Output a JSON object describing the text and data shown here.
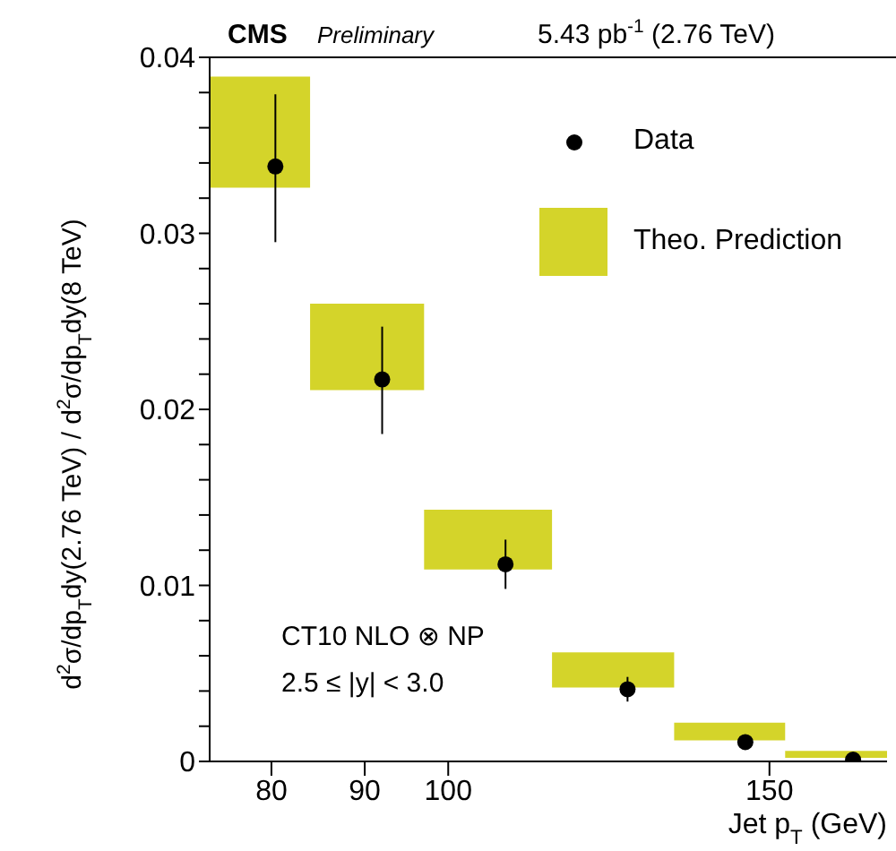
{
  "chart_data": {
    "type": "scatter",
    "xlabel": "Jet p$_{T}$ (GeV)",
    "ylabel": "d$^{2}$σ/dp$_{T}$dy(2.76 TeV) / d$^{2}$σ/dp$_{T}$dy(8 TeV)",
    "annotations": [
      "CMS",
      "Preliminary",
      "5.43 pb$^{-1}$ (2.76 TeV)",
      "CT10 NLO ⊗ NP",
      "2.5 ≤ |y| < 3.0"
    ],
    "log": "x",
    "xlim": [
      74,
      174
    ],
    "xticks": [
      80,
      90,
      100,
      150
    ],
    "ylim": [
      0,
      0.04
    ],
    "yticks": [
      0,
      {
        "value": 0.002,
        "label": null
      },
      {
        "value": 0.004,
        "label": null
      },
      {
        "value": 0.006,
        "label": null
      },
      {
        "value": 0.008,
        "label": null
      },
      0.01,
      {
        "value": 0.012,
        "label": null
      },
      {
        "value": 0.014,
        "label": null
      },
      {
        "value": 0.016,
        "label": null
      },
      {
        "value": 0.018,
        "label": null
      },
      0.02,
      {
        "value": 0.022,
        "label": null
      },
      {
        "value": 0.024,
        "label": null
      },
      {
        "value": 0.026,
        "label": null
      },
      {
        "value": 0.028,
        "label": null
      },
      0.03,
      {
        "value": 0.032,
        "label": null
      },
      {
        "value": 0.034,
        "label": null
      },
      {
        "value": 0.036,
        "label": null
      },
      {
        "value": 0.038,
        "label": null
      },
      0.04
    ],
    "grid": false,
    "legend": "top right",
    "series": [
      {
        "name": "Theo. Prediction",
        "type": "histogram",
        "color": "#d4d42a",
        "bins": [
          74,
          84,
          97,
          114,
          133,
          153,
          174
        ],
        "base": [
          0.0326,
          0.0211,
          0.0109,
          0.0042,
          0.0012,
          0.0002
        ],
        "values": [
          0.0063,
          0.0049,
          0.0034,
          0.002,
          0.001,
          0.0004
        ]
      },
      {
        "name": "Data",
        "color": "#000000",
        "marker": "circle",
        "x": [
          80.4,
          92,
          107.5,
          125.4,
          145.5,
          166.7
        ],
        "values": [
          0.0338,
          0.0217,
          0.0112,
          0.0041,
          0.0011,
          0.0001
        ],
        "errors": [
          [
            0.0295,
            0.0379
          ],
          [
            0.0186,
            0.0247
          ],
          [
            0.0098,
            0.0126
          ],
          [
            0.0034,
            0.0048
          ],
          null,
          null
        ]
      }
    ]
  }
}
